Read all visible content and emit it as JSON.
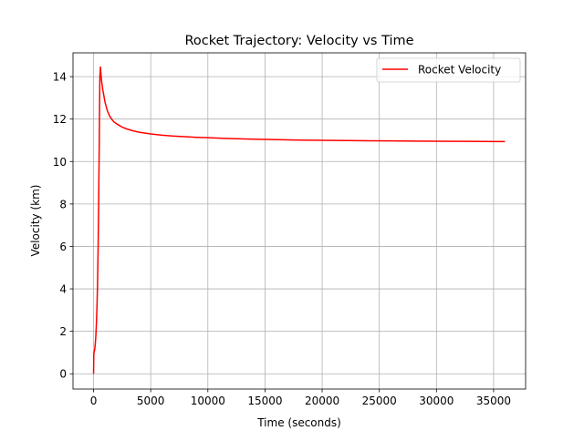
{
  "chart_data": {
    "type": "line",
    "title": "Rocket Trajectory: Velocity vs Time",
    "xlabel": "Time (seconds)",
    "ylabel": "Velocity (km)",
    "xlim": [
      -1800,
      37800
    ],
    "ylim": [
      -0.72,
      15.12
    ],
    "x_ticks": [
      0,
      5000,
      10000,
      15000,
      20000,
      25000,
      30000,
      35000
    ],
    "y_ticks": [
      0,
      2,
      4,
      6,
      8,
      10,
      12,
      14
    ],
    "x_tick_labels": [
      "0",
      "5000",
      "10000",
      "15000",
      "20000",
      "25000",
      "30000",
      "35000"
    ],
    "y_tick_labels": [
      "0",
      "2",
      "4",
      "6",
      "8",
      "10",
      "12",
      "14"
    ],
    "grid": true,
    "legend_position": "top-right",
    "colors": {
      "series": "#ff0000",
      "grid": "#b0b0b0"
    },
    "series": [
      {
        "name": "Rocket Velocity",
        "color": "#ff0000",
        "x": [
          0,
          10,
          20,
          40,
          60,
          100,
          150,
          200,
          250,
          300,
          350,
          400,
          450,
          500,
          550,
          600,
          650,
          700,
          800,
          900,
          1000,
          1200,
          1400,
          1600,
          1800,
          2000,
          2500,
          3000,
          3500,
          4000,
          5000,
          6000,
          7000,
          8000,
          9000,
          10000,
          12000,
          14000,
          16000,
          18000,
          20000,
          22000,
          24000,
          26000,
          28000,
          30000,
          32000,
          34000,
          36000
        ],
        "values": [
          0,
          0.5,
          0.9,
          1.0,
          1.05,
          1.15,
          1.4,
          1.8,
          2.4,
          3.2,
          4.3,
          6.0,
          8.3,
          11.0,
          14.0,
          14.45,
          14.1,
          13.8,
          13.4,
          13.1,
          12.8,
          12.4,
          12.15,
          11.98,
          11.86,
          11.78,
          11.62,
          11.52,
          11.44,
          11.38,
          11.3,
          11.24,
          11.2,
          11.17,
          11.14,
          11.12,
          11.08,
          11.05,
          11.03,
          11.01,
          11.0,
          10.99,
          10.98,
          10.97,
          10.96,
          10.955,
          10.95,
          10.945,
          10.94
        ]
      }
    ]
  }
}
